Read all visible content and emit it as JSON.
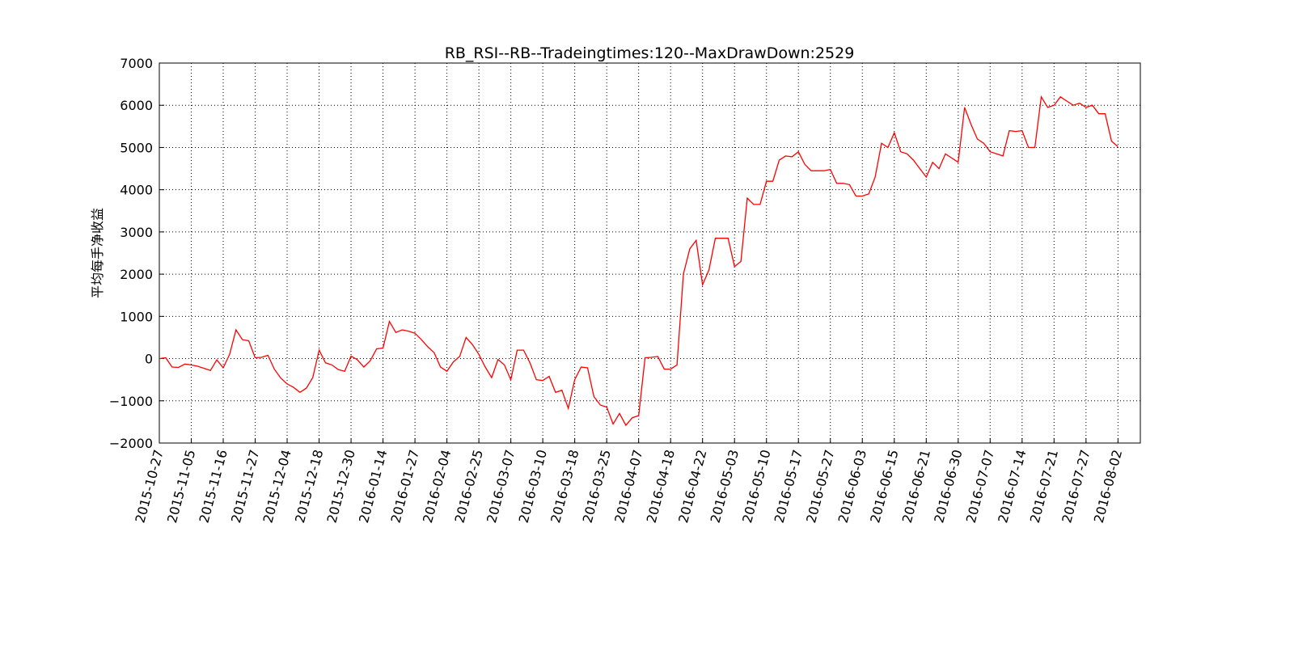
{
  "chart_data": {
    "type": "line",
    "title": "RB_RSI--RB--Tradeingtimes:120--MaxDrawDown:2529",
    "y_label": "平均每手净收益",
    "categories": [
      "2015-10-27",
      null,
      null,
      null,
      null,
      "2015-11-05",
      null,
      null,
      null,
      null,
      "2015-11-16",
      null,
      null,
      null,
      null,
      "2015-11-27",
      null,
      null,
      null,
      null,
      "2015-12-04",
      null,
      null,
      null,
      null,
      "2015-12-18",
      null,
      null,
      null,
      null,
      "2015-12-30",
      null,
      null,
      null,
      null,
      "2016-01-14",
      null,
      null,
      null,
      null,
      "2016-01-27",
      null,
      null,
      null,
      null,
      "2016-02-04",
      null,
      null,
      null,
      null,
      "2016-02-25",
      null,
      null,
      null,
      null,
      "2016-03-07",
      null,
      null,
      null,
      null,
      "2016-03-10",
      null,
      null,
      null,
      null,
      "2016-03-18",
      null,
      null,
      null,
      null,
      "2016-03-25",
      null,
      null,
      null,
      null,
      "2016-04-07",
      null,
      null,
      null,
      null,
      "2016-04-18",
      null,
      null,
      null,
      null,
      "2016-04-22",
      null,
      null,
      null,
      null,
      "2016-05-03",
      null,
      null,
      null,
      null,
      "2016-05-10",
      null,
      null,
      null,
      null,
      "2016-05-17",
      null,
      null,
      null,
      null,
      "2016-05-27",
      null,
      null,
      null,
      null,
      "2016-06-03",
      null,
      null,
      null,
      null,
      "2016-06-15",
      null,
      null,
      null,
      null,
      "2016-06-21",
      null,
      null,
      null,
      null,
      "2016-06-30",
      null,
      null,
      null,
      null,
      "2016-07-07",
      null,
      null,
      null,
      null,
      "2016-07-14",
      null,
      null,
      null,
      null,
      "2016-07-21",
      null,
      null,
      null,
      null,
      "2016-07-27",
      null,
      null,
      null,
      null,
      "2016-08-02"
    ],
    "series": [
      {
        "color": "#ff0000",
        "values": [
          0,
          20,
          -200,
          -210,
          -130,
          -150,
          -180,
          -230,
          -280,
          -30,
          -220,
          100,
          680,
          450,
          420,
          20,
          30,
          80,
          -250,
          -460,
          -600,
          -680,
          -800,
          -700,
          -450,
          200,
          -100,
          -150,
          -260,
          -300,
          60,
          -30,
          -200,
          -50,
          230,
          250,
          880,
          620,
          680,
          650,
          600,
          450,
          280,
          140,
          -200,
          -300,
          -80,
          50,
          500,
          330,
          100,
          -200,
          -450,
          -20,
          -150,
          -500,
          200,
          200,
          -100,
          -500,
          -520,
          -420,
          -800,
          -750,
          -1180,
          -500,
          -200,
          -220,
          -900,
          -1100,
          -1150,
          -1550,
          -1300,
          -1580,
          -1400,
          -1350,
          20,
          30,
          50,
          -250,
          -250,
          -150,
          2000,
          2600,
          2800,
          1750,
          2100,
          2850,
          2850,
          2850,
          2180,
          2300,
          3800,
          3650,
          3650,
          4200,
          4200,
          4700,
          4800,
          4780,
          4900,
          4600,
          4450,
          4450,
          4450,
          4480,
          4150,
          4150,
          4120,
          3850,
          3850,
          3900,
          4300,
          5100,
          5000,
          5350,
          4900,
          4850,
          4700,
          4500,
          4300,
          4650,
          4500,
          4850,
          4750,
          4650,
          5950,
          5550,
          5200,
          5100,
          4900,
          4850,
          4800,
          5400,
          5380,
          5400,
          5000,
          5000,
          6200,
          5950,
          6000,
          6200,
          6100,
          6000,
          6050,
          5950,
          6000,
          5800,
          5800,
          5150,
          5020
        ]
      }
    ],
    "xlim": [
      0,
      153.5
    ],
    "ylim": [
      -2000,
      7000
    ],
    "yticks": [
      {
        "value": -2000,
        "label": "−2000"
      },
      {
        "value": -1000,
        "label": "−1000"
      },
      0,
      1000,
      2000,
      3000,
      4000,
      5000,
      6000,
      7000
    ],
    "grid": true
  }
}
